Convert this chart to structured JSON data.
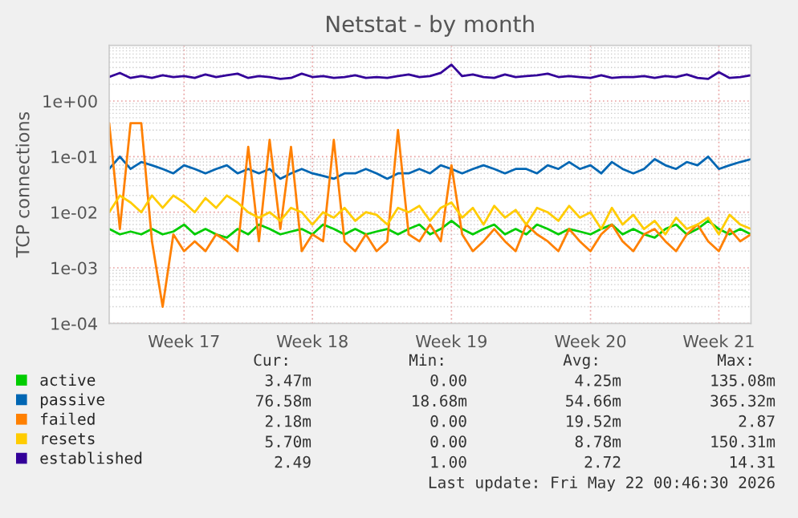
{
  "chart_data": {
    "type": "line",
    "title": "Netstat - by month",
    "ylabel": "TCP connections",
    "log": "y",
    "grid": true,
    "legend": "bottom",
    "marker": "none",
    "line_style": "solid",
    "ylim": [
      0.0001,
      10
    ],
    "yticks": [
      {
        "value": 0.0001,
        "label": "1e-04"
      },
      {
        "value": 0.001,
        "label": "1e-03"
      },
      {
        "value": 0.01,
        "label": "1e-02"
      },
      {
        "value": 0.1,
        "label": "1e-01"
      },
      {
        "value": 1,
        "label": "1e+00"
      }
    ],
    "categories": [
      null,
      null,
      null,
      null,
      null,
      null,
      null,
      "Week 17",
      null,
      null,
      null,
      null,
      null,
      null,
      null,
      null,
      null,
      null,
      null,
      "Week 18",
      null,
      null,
      null,
      null,
      null,
      null,
      null,
      null,
      null,
      null,
      null,
      null,
      "Week 19",
      null,
      null,
      null,
      null,
      null,
      null,
      null,
      null,
      null,
      null,
      null,
      null,
      "Week 20",
      null,
      null,
      null,
      null,
      null,
      null,
      null,
      null,
      null,
      null,
      null,
      "Week 21",
      null,
      null,
      null
    ],
    "series": [
      {
        "name": "active",
        "color": "#00cc00",
        "values": [
          0.005,
          0.004,
          0.0045,
          0.004,
          0.005,
          0.004,
          0.0045,
          0.006,
          0.004,
          0.005,
          0.004,
          0.0035,
          0.005,
          0.004,
          0.006,
          0.005,
          0.004,
          0.0045,
          0.005,
          0.004,
          0.006,
          0.005,
          0.004,
          0.005,
          0.004,
          0.0045,
          0.005,
          0.004,
          0.005,
          0.006,
          0.004,
          0.005,
          0.007,
          0.005,
          0.004,
          0.005,
          0.006,
          0.004,
          0.005,
          0.004,
          0.006,
          0.005,
          0.004,
          0.005,
          0.0045,
          0.004,
          0.005,
          0.006,
          0.004,
          0.005,
          0.004,
          0.0035,
          0.005,
          0.006,
          0.004,
          0.005,
          0.007,
          0.005,
          0.004,
          0.005,
          0.004
        ]
      },
      {
        "name": "passive",
        "color": "#0066b3",
        "values": [
          0.06,
          0.1,
          0.06,
          0.08,
          0.07,
          0.06,
          0.05,
          0.07,
          0.06,
          0.05,
          0.06,
          0.07,
          0.05,
          0.06,
          0.05,
          0.06,
          0.04,
          0.05,
          0.06,
          0.05,
          0.045,
          0.04,
          0.05,
          0.05,
          0.06,
          0.05,
          0.04,
          0.05,
          0.05,
          0.06,
          0.05,
          0.07,
          0.06,
          0.05,
          0.06,
          0.07,
          0.06,
          0.05,
          0.06,
          0.06,
          0.05,
          0.07,
          0.06,
          0.08,
          0.06,
          0.07,
          0.05,
          0.08,
          0.06,
          0.05,
          0.06,
          0.09,
          0.07,
          0.06,
          0.08,
          0.07,
          0.1,
          0.06,
          0.07,
          0.08,
          0.09
        ]
      },
      {
        "name": "failed",
        "color": "#ff8000",
        "values": [
          0.4,
          0.005,
          0.4,
          0.4,
          0.003,
          0.0002,
          0.004,
          0.002,
          0.003,
          0.002,
          0.004,
          0.003,
          0.002,
          0.15,
          0.003,
          0.2,
          0.005,
          0.15,
          0.002,
          0.004,
          0.003,
          0.2,
          0.003,
          0.002,
          0.004,
          0.002,
          0.003,
          0.3,
          0.004,
          0.003,
          0.006,
          0.003,
          0.07,
          0.004,
          0.002,
          0.003,
          0.005,
          0.003,
          0.002,
          0.006,
          0.004,
          0.003,
          0.002,
          0.005,
          0.003,
          0.002,
          0.004,
          0.006,
          0.003,
          0.002,
          0.004,
          0.005,
          0.003,
          0.002,
          0.004,
          0.006,
          0.003,
          0.002,
          0.005,
          0.003,
          0.004
        ]
      },
      {
        "name": "resets",
        "color": "#ffcc00",
        "values": [
          0.01,
          0.02,
          0.015,
          0.01,
          0.02,
          0.012,
          0.02,
          0.015,
          0.01,
          0.018,
          0.012,
          0.02,
          0.015,
          0.01,
          0.008,
          0.01,
          0.007,
          0.012,
          0.01,
          0.006,
          0.01,
          0.008,
          0.012,
          0.007,
          0.01,
          0.009,
          0.006,
          0.012,
          0.01,
          0.013,
          0.007,
          0.012,
          0.015,
          0.008,
          0.012,
          0.006,
          0.013,
          0.008,
          0.011,
          0.006,
          0.012,
          0.01,
          0.007,
          0.013,
          0.008,
          0.01,
          0.005,
          0.012,
          0.006,
          0.009,
          0.005,
          0.007,
          0.004,
          0.008,
          0.005,
          0.006,
          0.008,
          0.004,
          0.009,
          0.006,
          0.005
        ]
      },
      {
        "name": "established",
        "color": "#330099",
        "values": [
          2.7,
          3.2,
          2.6,
          2.8,
          2.6,
          2.9,
          2.7,
          2.8,
          2.6,
          3.0,
          2.7,
          2.9,
          3.1,
          2.6,
          2.8,
          2.7,
          2.5,
          2.6,
          3.1,
          2.7,
          2.8,
          2.6,
          2.7,
          2.9,
          2.6,
          2.7,
          2.6,
          2.8,
          3.0,
          2.7,
          2.8,
          3.2,
          4.5,
          2.8,
          3.0,
          2.7,
          2.6,
          3.0,
          2.7,
          2.8,
          2.9,
          3.1,
          2.7,
          2.8,
          2.7,
          2.6,
          2.9,
          2.6,
          2.7,
          2.7,
          2.8,
          2.6,
          2.8,
          2.7,
          3.0,
          2.6,
          2.5,
          3.3,
          2.6,
          2.7,
          2.9
        ]
      }
    ],
    "annotations": [
      "Cur:",
      "Min:",
      "Avg:",
      "Max:",
      "3.47m",
      "0.00",
      "4.25m",
      "135.08m",
      "76.58m",
      "18.68m",
      "54.66m",
      "365.32m",
      "2.18m",
      "0.00",
      "19.52m",
      "2.87",
      "5.70m",
      "0.00",
      "8.78m",
      "150.31m",
      "2.49",
      "1.00",
      "2.72",
      "14.31",
      "Last update: Fri May 22 00:46:30 2026"
    ]
  }
}
